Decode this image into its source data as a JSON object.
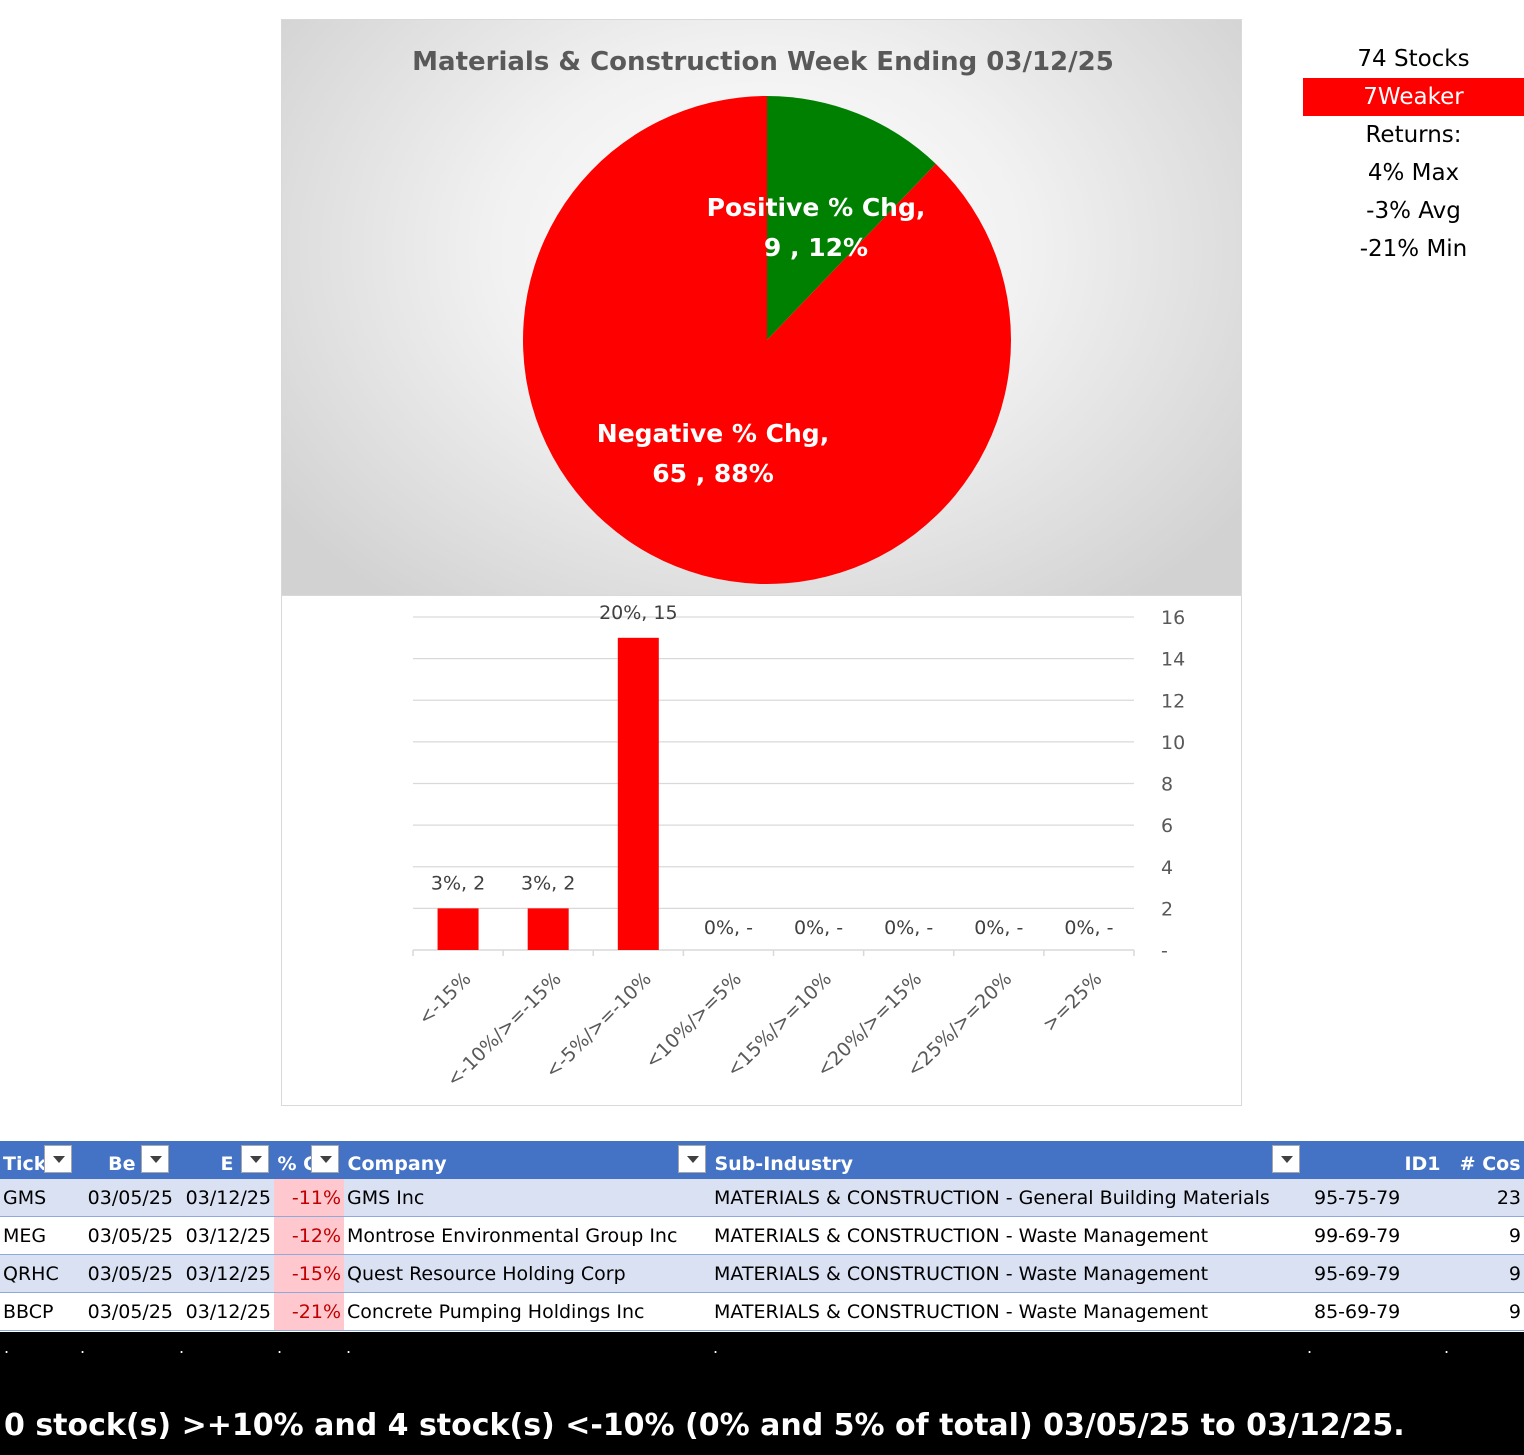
{
  "chart_data": [
    {
      "type": "pie",
      "title": "Materials & Construction Week Ending 03/12/25",
      "slices": [
        {
          "label": "Positive % Chg",
          "value": 9,
          "percent": "12%",
          "color": "#008000"
        },
        {
          "label": "Negative % Chg",
          "value": 65,
          "percent": "88%",
          "color": "#ff0000"
        }
      ],
      "data_labels": [
        {
          "line1": "Positive % Chg,",
          "line2": "9 , 12%"
        },
        {
          "line1": "Negative % Chg,",
          "line2": "65 , 88%"
        }
      ]
    },
    {
      "type": "bar",
      "categories": [
        "<-15%",
        "<-10%/>=-15%",
        "<-5%/>=-10%",
        "<10%/>=5%",
        "<15%/>=10%",
        "<20%/>=15%",
        "<25%/>=20%",
        ">=25%"
      ],
      "values": [
        2,
        2,
        15,
        0,
        0,
        0,
        0,
        0
      ],
      "data_labels": [
        "3%,  2",
        "3%,  2",
        "20%,  15",
        "0%,  -",
        "0%,  -",
        "0%,  -",
        "0%,  -",
        "0%,  -"
      ],
      "y_ticks": [
        "-",
        "2",
        "4",
        "6",
        "8",
        "10",
        "12",
        "14",
        "16"
      ],
      "ylim": [
        0,
        16
      ],
      "y_axis_side": "right",
      "grid": true,
      "bar_color": "#ff0000"
    }
  ],
  "summary": {
    "stocks": "74 Stocks",
    "weaker": "7Weaker",
    "returns_label": "Returns:",
    "max": "4% Max",
    "avg": "-3% Avg",
    "min": "-21% Min"
  },
  "table": {
    "headers": [
      "Tick",
      "Be",
      "E",
      "% C",
      "Company",
      "Sub-Industry",
      "ID1",
      "# Cos"
    ],
    "rows": [
      [
        "GMS",
        "03/05/25",
        "03/12/25",
        "-11%",
        "GMS Inc",
        "MATERIALS & CONSTRUCTION - General Building Materials",
        "95-75-79",
        "23"
      ],
      [
        "MEG",
        "03/05/25",
        "03/12/25",
        "-12%",
        "Montrose Environmental Group Inc",
        "MATERIALS & CONSTRUCTION - Waste Management",
        "99-69-79",
        "9"
      ],
      [
        "QRHC",
        "03/05/25",
        "03/12/25",
        "-15%",
        "Quest Resource Holding Corp",
        "MATERIALS & CONSTRUCTION - Waste Management",
        "95-69-79",
        "9"
      ],
      [
        "BBCP",
        "03/05/25",
        "03/12/25",
        "-21%",
        "Concrete Pumping Holdings Inc",
        "MATERIALS & CONSTRUCTION - Waste Management",
        "85-69-79",
        "9"
      ]
    ]
  },
  "footer": {
    "dots": [
      ".",
      ".",
      ".",
      ".",
      ".",
      ".",
      ".",
      "."
    ],
    "text": "0 stock(s) >+10% and 4 stock(s) <-10% (0% and 5% of total) 03/05/25 to 03/12/25."
  }
}
